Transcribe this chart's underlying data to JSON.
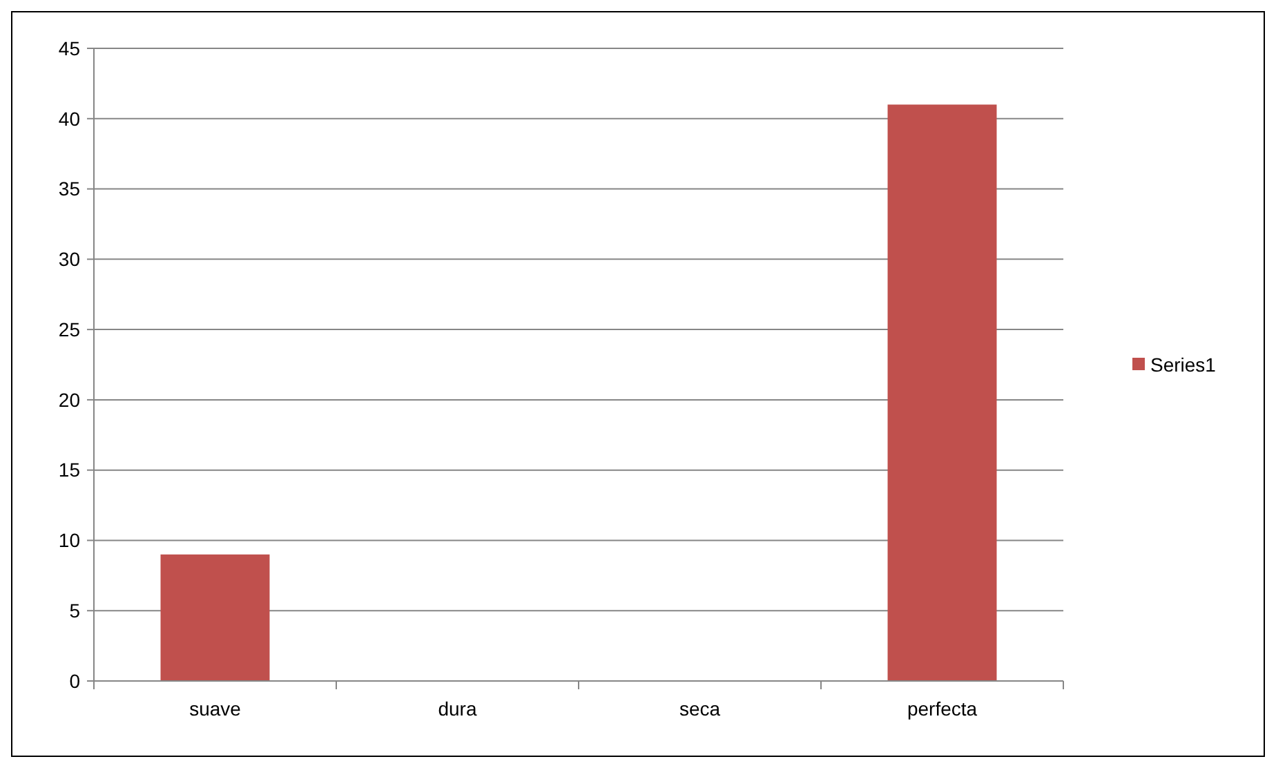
{
  "chart_data": {
    "type": "bar",
    "categories": [
      "suave",
      "dura",
      "seca",
      "perfecta"
    ],
    "series": [
      {
        "name": "Series1",
        "color": "#c0504d",
        "values": [
          9,
          0,
          0,
          41
        ]
      }
    ],
    "ylim": [
      0,
      45
    ],
    "yticks": [
      0,
      5,
      10,
      15,
      20,
      25,
      30,
      35,
      40,
      45
    ],
    "grid": "y",
    "legend": "right"
  }
}
